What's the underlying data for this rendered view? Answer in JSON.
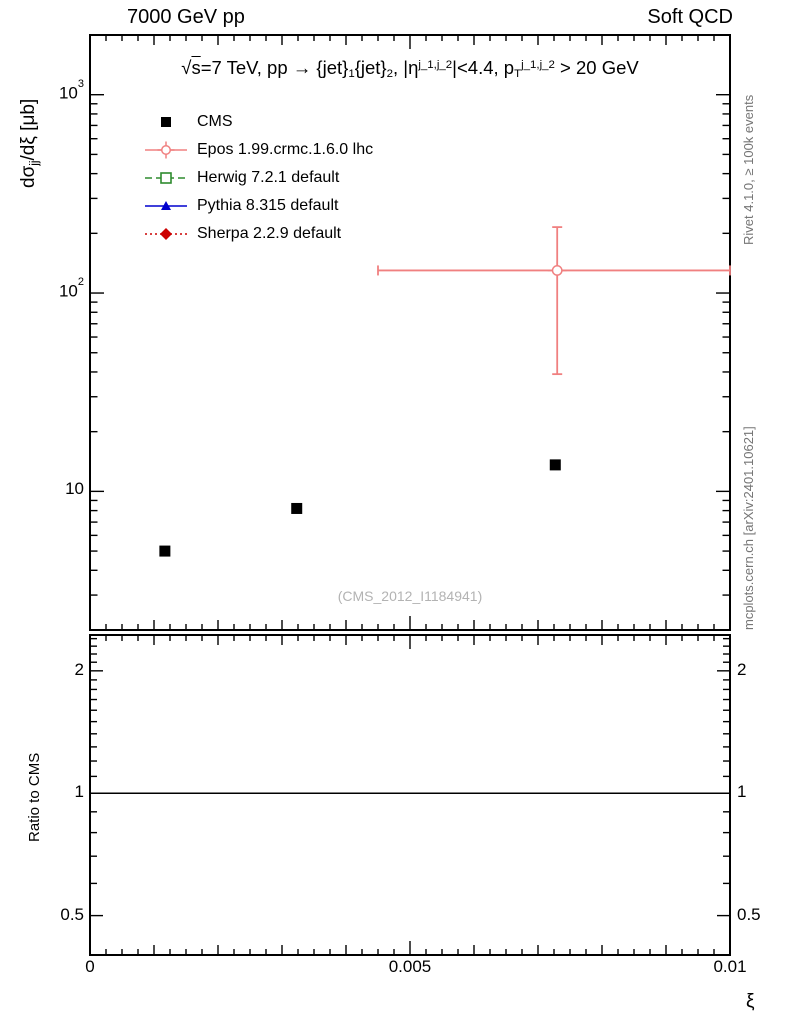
{
  "header": {
    "left": "7000 GeV pp",
    "right": "Soft QCD"
  },
  "main_plot": {
    "title_segments": [
      {
        "t": "√"
      },
      {
        "t": "s",
        "s": "overline"
      },
      {
        "t": "=7 TeV, pp → {jet}"
      },
      {
        "t": "1",
        "s": "sub"
      },
      {
        "t": "{jet}"
      },
      {
        "t": "2",
        "s": "sub"
      },
      {
        "t": ", |η"
      },
      {
        "t": "j_1,j_2",
        "s": "sup"
      },
      {
        "t": "|<4.4, p"
      },
      {
        "t": "T",
        "s": "sub"
      },
      {
        "t": "j_1,j_2",
        "s": "sup"
      },
      {
        "t": " > 20 GeV"
      }
    ],
    "ylabel_segments": [
      {
        "t": "dσ"
      },
      {
        "t": "jj",
        "s": "sub"
      },
      {
        "t": "/dξ [μb]"
      }
    ],
    "watermark": "(CMS_2012_I1184941)",
    "yticks": [
      {
        "base": "10",
        "exp": "3",
        "value": 1000
      },
      {
        "base": "10",
        "exp": "2",
        "value": 100
      },
      {
        "base": "10",
        "exp": "",
        "value": 10
      }
    ]
  },
  "legend": [
    {
      "label": "CMS",
      "marker": "square-filled",
      "color": "#000000",
      "line": "none"
    },
    {
      "label": "Epos 1.99.crmc.1.6.0 lhc",
      "marker": "circle-cross-open",
      "color": "#f08080",
      "line": "solid"
    },
    {
      "label": "Herwig 7.2.1 default",
      "marker": "square-open",
      "color": "#2e8b2e",
      "line": "dashed"
    },
    {
      "label": "Pythia 8.315 default",
      "marker": "triangle-filled",
      "color": "#0000cd",
      "line": "solid"
    },
    {
      "label": "Sherpa 2.2.9 default",
      "marker": "diamond-filled",
      "color": "#cc0000",
      "line": "dotted"
    }
  ],
  "ratio_plot": {
    "ylabel": "Ratio to CMS",
    "yticks": [
      {
        "label": "2",
        "value": 2
      },
      {
        "label": "1",
        "value": 1
      },
      {
        "label": "0.5",
        "value": 0.5
      }
    ],
    "reference_line": 1
  },
  "x_axis": {
    "label": "ξ",
    "ticks": [
      {
        "label": "0",
        "value": 0
      },
      {
        "label": "0.005",
        "value": 0.005
      },
      {
        "label": "0.01",
        "value": 0.01
      }
    ]
  },
  "side_labels": {
    "top_right": "Rivet 4.1.0, ≥ 100k events",
    "bottom_right": "mcplots.cern.ch [arXiv:2401.10621]"
  },
  "chart_data": {
    "type": "scatter",
    "title": "√s=7 TeV, pp → {jet}_1{jet}_2, |η^{j_1,j_2}|<4.4, p_T^{j_1,j_2} > 20 GeV",
    "xlabel": "ξ",
    "ylabel": "dσ_jj/dξ [μb]",
    "xlim": [
      0,
      0.01
    ],
    "ylog": true,
    "ylim": [
      2,
      2000
    ],
    "ratio_ylim": [
      0.4,
      2.45
    ],
    "ratio_reference": 1,
    "series": [
      {
        "name": "CMS",
        "role": "data",
        "marker": "square-filled",
        "color": "#000000",
        "points": [
          {
            "x": 0.00117,
            "y": 5.0
          },
          {
            "x": 0.00323,
            "y": 8.2
          },
          {
            "x": 0.00727,
            "y": 13.6
          }
        ]
      },
      {
        "name": "Epos 1.99.crmc.1.6.0 lhc",
        "role": "mc",
        "marker": "circle-cross-open",
        "color": "#f08080",
        "points": [
          {
            "x": 0.0073,
            "y": 130,
            "x_lo": 0.0045,
            "x_hi": 0.01,
            "y_lo": 39,
            "y_hi": 215
          }
        ]
      },
      {
        "name": "Herwig 7.2.1 default",
        "role": "mc",
        "marker": "square-open",
        "color": "#2e8b2e",
        "points": []
      },
      {
        "name": "Pythia 8.315 default",
        "role": "mc",
        "marker": "triangle-filled",
        "color": "#0000cd",
        "points": []
      },
      {
        "name": "Sherpa 2.2.9 default",
        "role": "mc",
        "marker": "diamond-filled",
        "color": "#cc0000",
        "points": []
      }
    ]
  }
}
